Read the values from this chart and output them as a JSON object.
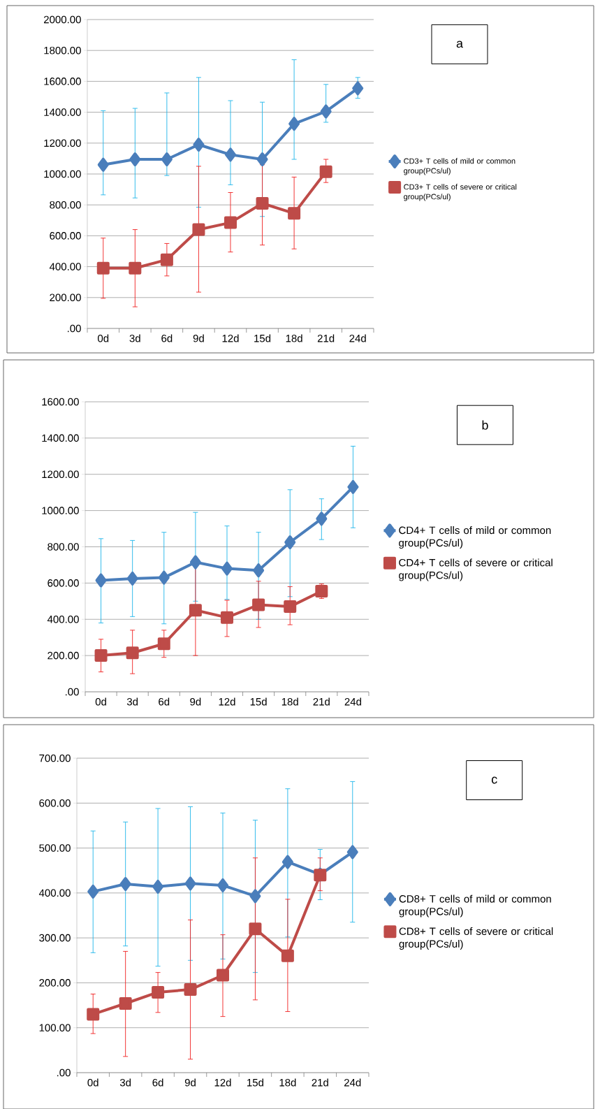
{
  "chart_data": [
    {
      "type": "line",
      "categories": [
        "0d",
        "3d",
        "6d",
        "9d",
        "12d",
        "15d",
        "18d",
        "21d",
        "24d"
      ],
      "ylim": [
        0,
        2000
      ],
      "yticks": [
        {
          "value": 0,
          "label": ".00"
        },
        {
          "value": 200,
          "label": "200.00"
        },
        {
          "value": 400,
          "label": "400.00"
        },
        {
          "value": 600,
          "label": "600.00"
        },
        {
          "value": 800,
          "label": "800.00"
        },
        {
          "value": 1000,
          "label": "1000.00"
        },
        {
          "value": 1200,
          "label": "1200.00"
        },
        {
          "value": 1400,
          "label": "1400.00"
        },
        {
          "value": 1600,
          "label": "1600.00"
        },
        {
          "value": 1800,
          "label": "1800.00"
        },
        {
          "value": 2000,
          "label": "2000.00"
        }
      ],
      "grid": "y",
      "legend": "right",
      "annotations": [
        "a"
      ],
      "series": [
        {
          "name": "CD3+ T cells of mild or common group(PCs/ul)",
          "color": "#4a7ebb",
          "marker": "diamond",
          "values": [
            1060,
            1095,
            1095,
            1190,
            1125,
            1095,
            1325,
            1405,
            1555
          ],
          "errors": [
            [
              865,
              1410
            ],
            [
              845,
              1425
            ],
            [
              990,
              1525
            ],
            [
              785,
              1625
            ],
            [
              930,
              1475
            ],
            [
              725,
              1465
            ],
            [
              1095,
              1740
            ],
            [
              1335,
              1580
            ],
            [
              1490,
              1625
            ]
          ]
        },
        {
          "name": "CD3+ T cells of severe or critical group(PCs/ul)",
          "color": "#be4b48",
          "marker": "square",
          "values": [
            390,
            390,
            445,
            640,
            685,
            810,
            745,
            1015,
            null
          ],
          "errors": [
            [
              195,
              585
            ],
            [
              140,
              640
            ],
            [
              340,
              550
            ],
            [
              235,
              1050
            ],
            [
              495,
              880
            ],
            [
              540,
              1060
            ],
            [
              515,
              980
            ],
            [
              945,
              1095
            ],
            null
          ]
        }
      ]
    },
    {
      "type": "line",
      "categories": [
        "0d",
        "3d",
        "6d",
        "9d",
        "12d",
        "15d",
        "18d",
        "21d",
        "24d"
      ],
      "ylim": [
        0,
        1600
      ],
      "yticks": [
        {
          "value": 0,
          "label": ".00"
        },
        {
          "value": 200,
          "label": "200.00"
        },
        {
          "value": 400,
          "label": "400.00"
        },
        {
          "value": 600,
          "label": "600.00"
        },
        {
          "value": 800,
          "label": "800.00"
        },
        {
          "value": 1000,
          "label": "1000.00"
        },
        {
          "value": 1200,
          "label": "1200.00"
        },
        {
          "value": 1400,
          "label": "1400.00"
        },
        {
          "value": 1600,
          "label": "1600.00"
        }
      ],
      "grid": "y",
      "legend": "right",
      "annotations": [
        "b"
      ],
      "series": [
        {
          "name": "CD4+ T cells of mild or common group(PCs/ul)",
          "color": "#4a7ebb",
          "marker": "diamond",
          "values": [
            615,
            625,
            630,
            715,
            680,
            670,
            825,
            955,
            1130
          ],
          "errors": [
            [
              380,
              845
            ],
            [
              415,
              835
            ],
            [
              375,
              880
            ],
            [
              500,
              990
            ],
            [
              510,
              915
            ],
            [
              400,
              880
            ],
            [
              525,
              1115
            ],
            [
              840,
              1065
            ],
            [
              905,
              1355
            ]
          ]
        },
        {
          "name": "CD4+ T cells of severe or critical group(PCs/ul)",
          "color": "#be4b48",
          "marker": "square",
          "values": [
            200,
            215,
            265,
            450,
            410,
            480,
            470,
            555,
            null
          ],
          "errors": [
            [
              110,
              290
            ],
            [
              100,
              340
            ],
            [
              190,
              340
            ],
            [
              200,
              700
            ],
            [
              305,
              505
            ],
            [
              355,
              610
            ],
            [
              370,
              580
            ],
            [
              515,
              595
            ],
            null
          ]
        }
      ]
    },
    {
      "type": "line",
      "categories": [
        "0d",
        "3d",
        "6d",
        "9d",
        "12d",
        "15d",
        "18d",
        "21d",
        "24d"
      ],
      "ylim": [
        0,
        700
      ],
      "yticks": [
        {
          "value": 0,
          "label": ".00"
        },
        {
          "value": 100,
          "label": "100.00"
        },
        {
          "value": 200,
          "label": "200.00"
        },
        {
          "value": 300,
          "label": "300.00"
        },
        {
          "value": 400,
          "label": "400.00"
        },
        {
          "value": 500,
          "label": "500.00"
        },
        {
          "value": 600,
          "label": "600.00"
        },
        {
          "value": 700,
          "label": "700.00"
        }
      ],
      "grid": "y",
      "legend": "right",
      "annotations": [
        "c"
      ],
      "series": [
        {
          "name": "CD8+ T cells of mild or common group(PCs/ul)",
          "color": "#4a7ebb",
          "marker": "diamond",
          "values": [
            403,
            420,
            414,
            421,
            417,
            393,
            469,
            441,
            491
          ],
          "errors": [
            [
              267,
              538
            ],
            [
              282,
              558
            ],
            [
              237,
              588
            ],
            [
              250,
              592
            ],
            [
              253,
              578
            ],
            [
              223,
              562
            ],
            [
              302,
              632
            ],
            [
              385,
              497
            ],
            [
              335,
              648
            ]
          ]
        },
        {
          "name": "CD8+ T cells of severe or critical group(PCs/ul)",
          "color": "#be4b48",
          "marker": "square",
          "values": [
            130,
            154,
            179,
            185,
            217,
            320,
            260,
            440,
            null
          ],
          "errors": [
            [
              87,
              175
            ],
            [
              36,
              270
            ],
            [
              134,
              223
            ],
            [
              30,
              340
            ],
            [
              125,
              307
            ],
            [
              162,
              478
            ],
            [
              136,
              386
            ],
            [
              405,
              478
            ],
            null
          ]
        }
      ]
    }
  ]
}
